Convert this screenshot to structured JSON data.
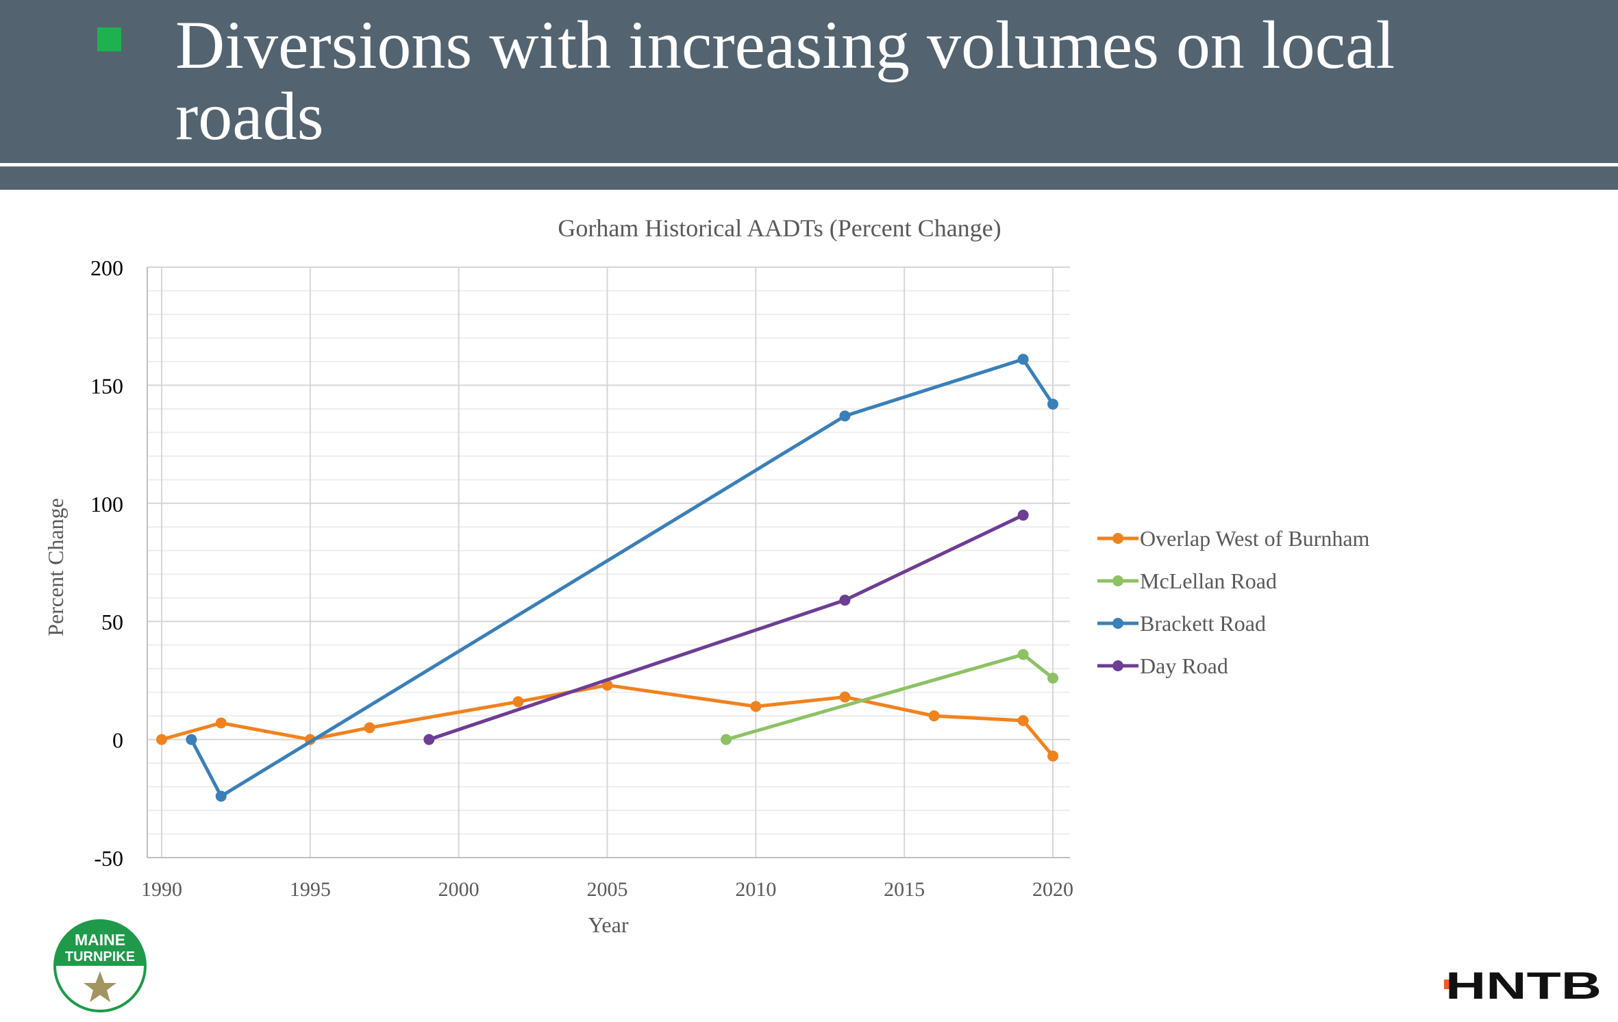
{
  "slide": {
    "title": "Diversions with increasing volumes on local roads",
    "accent_color": "#1eb14f",
    "header_color": "#53636f"
  },
  "logos": {
    "left": {
      "line1": "MAINE",
      "line2": "TURNPIKE",
      "icon": "star-icon",
      "color": "#1f9a4a"
    },
    "right": {
      "text": "HNTB",
      "accent": "#f15a22"
    }
  },
  "chart_data": {
    "type": "line",
    "title": "Gorham Historical AADTs (Percent Change)",
    "xlabel": "Year",
    "ylabel": "Percent Change",
    "xlim": [
      1990,
      2020
    ],
    "ylim": [
      -50,
      200
    ],
    "xticks": [
      1990,
      1995,
      2000,
      2005,
      2010,
      2015,
      2020
    ],
    "yticks": [
      -50,
      0,
      50,
      100,
      150,
      200
    ],
    "grid": true,
    "legend_position": "right",
    "series": [
      {
        "name": "Overlap West of Burnham",
        "color": "#f0821e",
        "points": [
          [
            1990,
            0
          ],
          [
            1992,
            7
          ],
          [
            1995,
            0
          ],
          [
            1997,
            5
          ],
          [
            2002,
            16
          ],
          [
            2005,
            23
          ],
          [
            2010,
            14
          ],
          [
            2013,
            18
          ],
          [
            2016,
            10
          ],
          [
            2019,
            8
          ],
          [
            2020,
            -7
          ]
        ]
      },
      {
        "name": "McLellan Road",
        "color": "#8dc264",
        "points": [
          [
            2009,
            0
          ],
          [
            2019,
            36
          ],
          [
            2020,
            26
          ]
        ]
      },
      {
        "name": "Brackett Road",
        "color": "#3a7fb8",
        "points": [
          [
            1991,
            0
          ],
          [
            1992,
            -24
          ],
          [
            2013,
            137
          ],
          [
            2019,
            161
          ],
          [
            2020,
            142
          ]
        ]
      },
      {
        "name": "Day Road",
        "color": "#6e3d94",
        "points": [
          [
            1999,
            0
          ],
          [
            2013,
            59
          ],
          [
            2019,
            95
          ]
        ]
      }
    ]
  }
}
